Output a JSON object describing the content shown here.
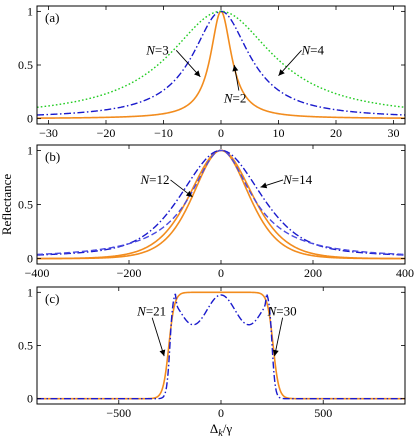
{
  "chart_data": [
    {
      "type": "line",
      "panel_label": "(a)",
      "xlim": [
        -32,
        32
      ],
      "ylim": [
        0,
        1
      ],
      "xticks": [
        -30,
        -20,
        -10,
        0,
        10,
        20,
        30
      ],
      "xtick_labels": [
        "−30",
        "−20",
        "−10",
        "0",
        "10",
        "20",
        "30"
      ],
      "yticks": [
        0,
        0.5,
        1
      ],
      "ytick_labels": [
        "0",
        "0.5",
        "1"
      ],
      "series": [
        {
          "label": "N=2",
          "style": "solid",
          "color": "#f28c1e",
          "shape": "lorentzian",
          "center": 0,
          "width": 2.2,
          "power": 1
        },
        {
          "label": "N=3",
          "style": "dashdot",
          "color": "#1a1acc",
          "shape": "lorentzian",
          "center": 0,
          "width": 6,
          "power": 1
        },
        {
          "label": "N=4",
          "style": "dotted",
          "color": "#22cc22",
          "shape": "lorentzian",
          "center": 0,
          "width": 11,
          "power": 1
        }
      ],
      "annotations": [
        {
          "text_prefix": "N",
          "text_suffix": "=3",
          "text_x": -13,
          "text_y": 0.6,
          "arrow_to_x": -3.6,
          "arrow_to_y": 0.39
        },
        {
          "text_prefix": "N",
          "text_suffix": "=4",
          "text_x": 14,
          "text_y": 0.6,
          "arrow_to_x": 10,
          "arrow_to_y": 0.4
        },
        {
          "text_prefix": "N",
          "text_suffix": "=2",
          "text_x": 0.5,
          "text_y": 0.15,
          "arrow_to_x": 2.3,
          "arrow_to_y": 0.5
        }
      ]
    },
    {
      "type": "line",
      "panel_label": "(b)",
      "xlim": [
        -400,
        400
      ],
      "ylim": [
        0,
        1
      ],
      "xticks": [
        -400,
        -200,
        0,
        200,
        400
      ],
      "xtick_labels": [
        "−400",
        "−200",
        "0",
        "200",
        "400"
      ],
      "yticks": [
        0,
        0.5,
        1
      ],
      "ytick_labels": [
        "0",
        "0.5",
        "1"
      ],
      "ylabel": "Reflectance",
      "series": [
        {
          "label": "N=12",
          "style": "solid",
          "color": "#f28c1e",
          "shape": "sech",
          "center": 0,
          "width": 80
        },
        {
          "label": "N=14",
          "style": "solid",
          "color": "#f28c1e",
          "shape": "sech",
          "center": 0,
          "width": 90
        },
        {
          "label": "N=12",
          "style": "dashdot",
          "color": "#1a1acc",
          "shape": "gauss_lor",
          "center": 0,
          "width": 135
        },
        {
          "label": "N=14",
          "style": "dashed",
          "color": "#4a4ae0",
          "shape": "lorentzian",
          "center": 0,
          "width": 80,
          "power": 1
        }
      ],
      "annotations": [
        {
          "text_prefix": "N",
          "text_suffix": "=12",
          "text_x": -175,
          "text_y": 0.69,
          "arrow_to_x": -62,
          "arrow_to_y": 0.57
        },
        {
          "text_prefix": "N",
          "text_suffix": "=14",
          "text_x": 135,
          "text_y": 0.69,
          "arrow_to_x": 86,
          "arrow_to_y": 0.66
        }
      ]
    },
    {
      "type": "line",
      "panel_label": "(c)",
      "xlim": [
        -900,
        900
      ],
      "ylim": [
        0,
        1
      ],
      "xticks": [
        -500,
        0,
        500
      ],
      "xtick_labels": [
        "−500",
        "0",
        "500"
      ],
      "yticks": [
        0,
        0.5,
        1
      ],
      "ytick_labels": [
        "0",
        "0.5",
        "1"
      ],
      "xlabel_main": "Δ",
      "xlabel_sub": "k",
      "xlabel_rest": "/γ",
      "series": [
        {
          "label": "N=21",
          "style": "solid",
          "color": "#f28c1e",
          "shape": "flattop",
          "center": 0,
          "edge": 255,
          "softness": 14
        },
        {
          "label": "N=30",
          "style": "dashdot",
          "color": "#1a1acc",
          "shape": "rabi",
          "center": 0,
          "edge": 250,
          "softness": 8
        }
      ],
      "annotations": [
        {
          "text_prefix": "N",
          "text_suffix": "=21",
          "text_x": -410,
          "text_y": 0.78,
          "arrow_to_x": -278,
          "arrow_to_y": 0.4
        },
        {
          "text_prefix": "N",
          "text_suffix": "=30",
          "text_x": 228,
          "text_y": 0.78,
          "arrow_to_x": 262,
          "arrow_to_y": 0.4
        }
      ]
    }
  ]
}
